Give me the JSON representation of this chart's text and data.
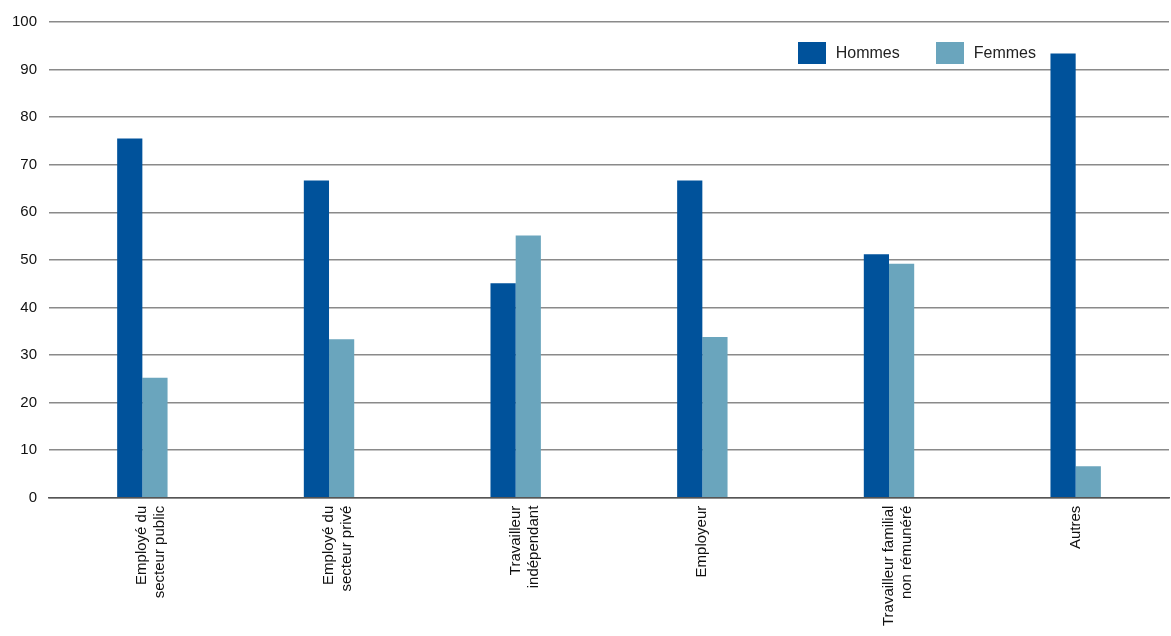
{
  "chart_data": {
    "type": "bar",
    "categories": [
      "Employé du\nsecteur public",
      "Employé du\nsecteur privé",
      "Travailleur\nindépendant",
      "Employeur",
      "Travailleur familial\nnon rémunéré",
      "Autres"
    ],
    "series": [
      {
        "name": "Hommes",
        "color": "#00529b",
        "values": [
          75.5,
          66.7,
          45.1,
          66.7,
          51.2,
          93.4
        ]
      },
      {
        "name": "Femmes",
        "color": "#6aa5bd",
        "values": [
          25.2,
          33.3,
          55.1,
          33.8,
          49.2,
          6.6
        ]
      }
    ],
    "ylim": [
      0,
      100
    ],
    "yticks": [
      0,
      10,
      20,
      30,
      40,
      50,
      60,
      70,
      80,
      90,
      100
    ],
    "grid": "y",
    "legend": "top right"
  }
}
